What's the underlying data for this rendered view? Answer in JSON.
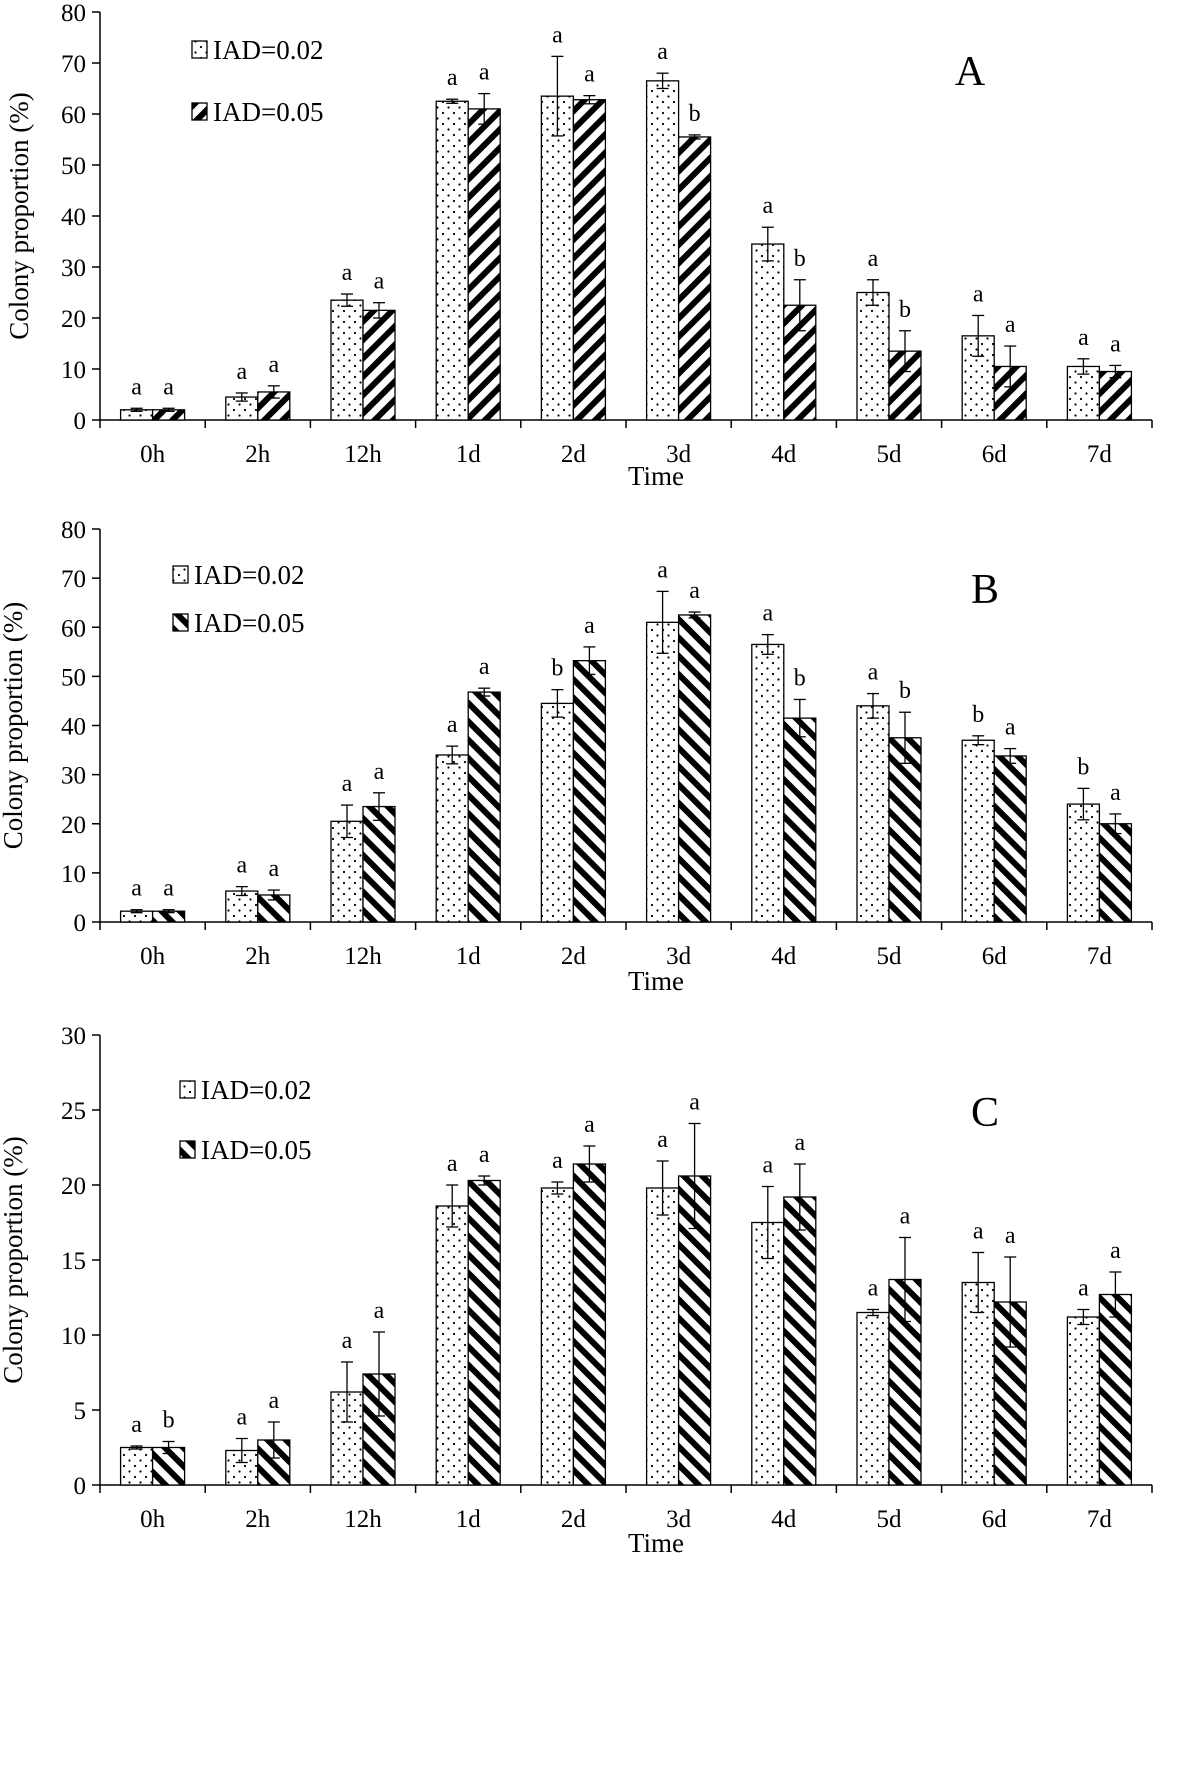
{
  "chart_data": [
    {
      "type": "bar",
      "panel": "A",
      "xlabel": "Time",
      "ylabel": "Colony proportion (%)",
      "ylim": [
        0,
        80
      ],
      "yticks": [
        0,
        10,
        20,
        30,
        40,
        50,
        60,
        70,
        80
      ],
      "categories": [
        "0h",
        "2h",
        "12h",
        "1d",
        "2d",
        "3d",
        "4d",
        "5d",
        "6d",
        "7d"
      ],
      "series": [
        {
          "name": "IAD=0.02",
          "pattern": "dots",
          "values": [
            2.0,
            4.5,
            23.5,
            62.5,
            63.5,
            66.5,
            34.5,
            25.0,
            16.5,
            10.5
          ],
          "errors": [
            0.3,
            0.8,
            1.2,
            0.4,
            7.8,
            1.5,
            3.3,
            2.5,
            4.0,
            1.5
          ],
          "letters": [
            "a",
            "a",
            "a",
            "a",
            "a",
            "a",
            "a",
            "a",
            "a",
            "a"
          ]
        },
        {
          "name": "IAD=0.05",
          "pattern": "diag-up",
          "values": [
            2.0,
            5.5,
            21.5,
            61.0,
            62.8,
            55.5,
            22.5,
            13.5,
            10.5,
            9.5
          ],
          "errors": [
            0.3,
            1.2,
            1.5,
            3.0,
            0.8,
            0.4,
            5.0,
            4.0,
            4.0,
            1.2
          ],
          "letters": [
            "a",
            "a",
            "a",
            "a",
            "a",
            "b",
            "b",
            "b",
            "a",
            "a"
          ]
        }
      ]
    },
    {
      "type": "bar",
      "panel": "B",
      "xlabel": "Time",
      "ylabel": "Colony proportion (%)",
      "ylim": [
        0,
        80
      ],
      "yticks": [
        0,
        10,
        20,
        30,
        40,
        50,
        60,
        70,
        80
      ],
      "categories": [
        "0h",
        "2h",
        "12h",
        "1d",
        "2d",
        "3d",
        "4d",
        "5d",
        "6d",
        "7d"
      ],
      "series": [
        {
          "name": "IAD=0.02",
          "pattern": "dots",
          "values": [
            2.2,
            6.3,
            20.5,
            34.0,
            44.5,
            61.0,
            56.5,
            44.0,
            37.0,
            24.0
          ],
          "errors": [
            0.3,
            0.9,
            3.3,
            1.8,
            2.8,
            6.3,
            2.0,
            2.5,
            0.9,
            3.2
          ],
          "letters": [
            "a",
            "a",
            "a",
            "a",
            "b",
            "a",
            "a",
            "a",
            "b",
            "b"
          ]
        },
        {
          "name": "IAD=0.05",
          "pattern": "diag-down",
          "values": [
            2.2,
            5.5,
            23.5,
            46.8,
            53.2,
            62.5,
            41.5,
            37.5,
            33.8,
            20.0
          ],
          "errors": [
            0.3,
            1.0,
            2.8,
            0.8,
            2.8,
            0.6,
            3.8,
            5.2,
            1.5,
            2.0
          ],
          "letters": [
            "a",
            "a",
            "a",
            "a",
            "a",
            "a",
            "b",
            "b",
            "a",
            "a"
          ]
        }
      ]
    },
    {
      "type": "bar",
      "panel": "C",
      "xlabel": "Time",
      "ylabel": "Colony proportion (%)",
      "ylim": [
        0,
        30
      ],
      "yticks": [
        0,
        5,
        10,
        15,
        20,
        25,
        30
      ],
      "categories": [
        "0h",
        "2h",
        "12h",
        "1d",
        "2d",
        "3d",
        "4d",
        "5d",
        "6d",
        "7d"
      ],
      "series": [
        {
          "name": "IAD=0.02",
          "pattern": "dots",
          "values": [
            2.5,
            2.3,
            6.2,
            18.6,
            19.8,
            19.8,
            17.5,
            11.5,
            13.5,
            11.2
          ],
          "errors": [
            0.1,
            0.8,
            2.0,
            1.4,
            0.4,
            1.8,
            2.4,
            0.2,
            2.0,
            0.5
          ],
          "letters": [
            "a",
            "a",
            "a",
            "a",
            "a",
            "a",
            "a",
            "a",
            "a",
            "a"
          ]
        },
        {
          "name": "IAD=0.05",
          "pattern": "diag-down",
          "values": [
            2.5,
            3.0,
            7.4,
            20.3,
            21.4,
            20.6,
            19.2,
            13.7,
            12.2,
            12.7
          ],
          "errors": [
            0.4,
            1.2,
            2.8,
            0.3,
            1.2,
            3.5,
            2.2,
            2.8,
            3.0,
            1.5
          ],
          "letters": [
            "b",
            "a",
            "a",
            "a",
            "a",
            "a",
            "a",
            "a",
            "a",
            "a"
          ]
        }
      ]
    }
  ]
}
